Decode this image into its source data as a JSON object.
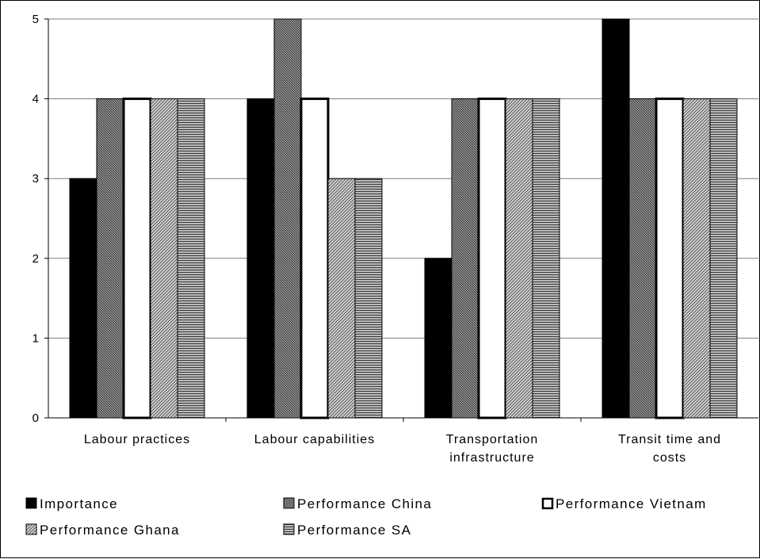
{
  "chart_data": {
    "type": "bar",
    "categories": [
      [
        "Labour practices"
      ],
      [
        "Labour capabilities"
      ],
      [
        "Transportation",
        "infrastructure"
      ],
      [
        "Transit time and",
        "costs"
      ]
    ],
    "series": [
      {
        "name": "Importance",
        "values": [
          3,
          4,
          2,
          5
        ],
        "pattern": "solid-black"
      },
      {
        "name": "Performance China",
        "values": [
          4,
          5,
          4,
          4
        ],
        "pattern": "dense-hatch"
      },
      {
        "name": "Performance Vietnam",
        "values": [
          4,
          4,
          4,
          4
        ],
        "pattern": "white"
      },
      {
        "name": "Performance Ghana",
        "values": [
          4,
          3,
          4,
          4
        ],
        "pattern": "diagonal-hatch"
      },
      {
        "name": "Performance SA",
        "values": [
          4,
          3,
          4,
          4
        ],
        "pattern": "horizontal-lines"
      }
    ],
    "y_ticks": [
      "0",
      "1",
      "2",
      "3",
      "4",
      "5"
    ],
    "ylim": [
      0,
      5
    ],
    "grid": true,
    "legend_position": "bottom"
  }
}
